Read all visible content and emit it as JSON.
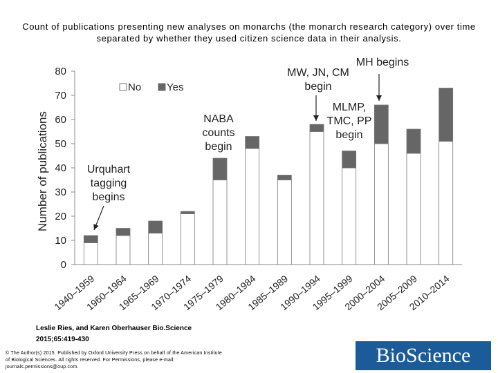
{
  "header": {
    "title": "Count of publications presenting new analyses on monarchs (the monarch research category) over time separated by whether they used citizen science data in their analysis."
  },
  "chart_data": {
    "type": "bar",
    "stacked": true,
    "categories": [
      "1940–1959",
      "1960–1964",
      "1965–1969",
      "1970–1974",
      "1975–1979",
      "1980–1984",
      "1985–1989",
      "1990–1994",
      "1995–1999",
      "2000–2004",
      "2005–2009",
      "2010–2014"
    ],
    "series": [
      {
        "name": "No",
        "color": "#ffffff",
        "values": [
          9,
          12,
          13,
          21,
          35,
          48,
          35,
          55,
          40,
          50,
          46,
          51
        ]
      },
      {
        "name": "Yes",
        "color": "#666666",
        "values": [
          3,
          3,
          5,
          1,
          9,
          5,
          2,
          3,
          7,
          16,
          10,
          22
        ]
      }
    ],
    "ylabel": "Number of publications",
    "ylim": [
      0,
      80
    ],
    "yticks": [
      0,
      10,
      20,
      30,
      40,
      50,
      60,
      70,
      80
    ],
    "grid": false,
    "legend_position": "top-center",
    "annotations": [
      {
        "lines": [
          "Urquhart",
          "tagging",
          "begins"
        ],
        "category": "1940–1959",
        "arrow": true
      },
      {
        "lines": [
          "NABA",
          "counts",
          "begin"
        ],
        "category": "1975–1979",
        "arrow": false
      },
      {
        "lines": [
          "MW, JN, CM",
          "begin"
        ],
        "category": "1990–1994",
        "arrow": true
      },
      {
        "lines": [
          "MH begins"
        ],
        "category": "2000–2004",
        "arrow": true
      },
      {
        "lines": [
          "MLMP,",
          "TMC, PP",
          "begin"
        ],
        "category": "1995–1999",
        "arrow": false
      }
    ]
  },
  "credit": {
    "authors": "Leslie Ries, and Karen Oberhauser Bio.Science",
    "citation": "2015;65:419-430"
  },
  "copyright": {
    "line1": "© The Author(s) 2015. Published by Oxford University Press on behalf of the American Institute",
    "line2": "of Biological Sciences. All rights reserved. For Permissions, please e-mail:",
    "line3": "journals.permissions@oup.com."
  },
  "logo": {
    "text": "BioScience"
  }
}
